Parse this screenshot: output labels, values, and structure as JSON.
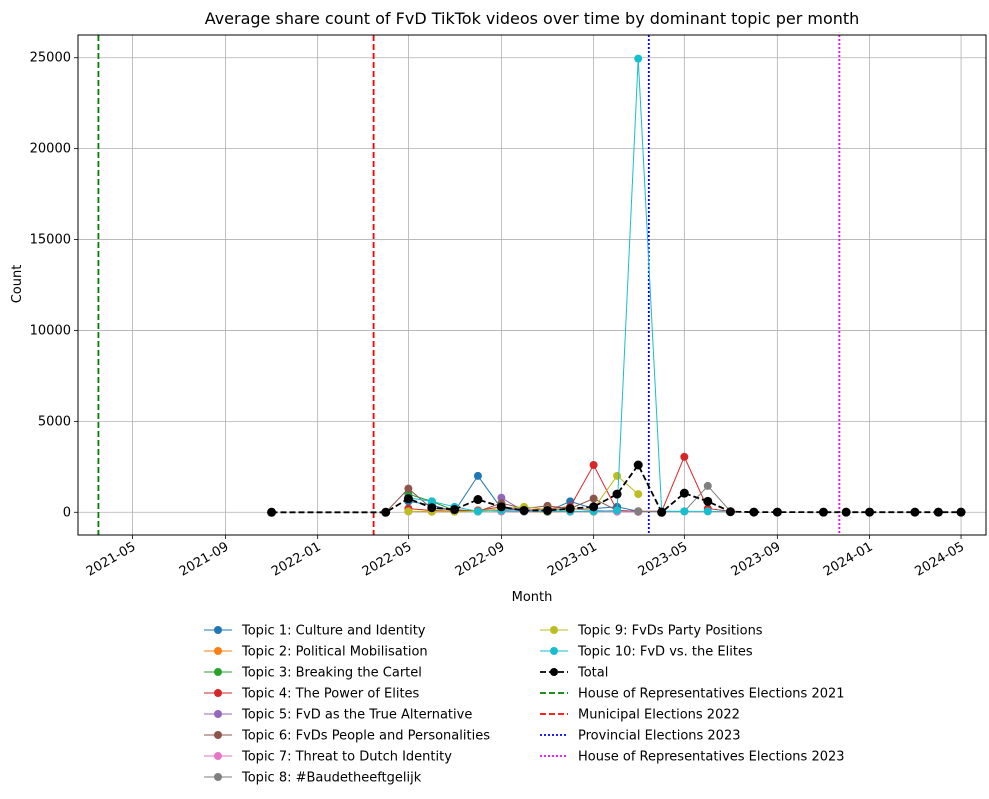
{
  "chart_data": {
    "type": "line",
    "title": "Average share count of FvD TikTok videos over time by dominant topic per month",
    "xlabel": "Month",
    "ylabel": "Count",
    "xlim": [
      "2021-02-18",
      "2024-06-03"
    ],
    "ylim": [
      -1250,
      26250
    ],
    "x_ticks": [
      "2021-05",
      "2021-09",
      "2022-01",
      "2022-05",
      "2022-09",
      "2023-01",
      "2023-05",
      "2023-09",
      "2024-01",
      "2024-05"
    ],
    "y_ticks": [
      0,
      5000,
      10000,
      15000,
      20000,
      25000
    ],
    "grid": true,
    "legend_position": "below plot, two columns",
    "series": [
      {
        "name": "Topic 1: Culture and Identity",
        "color": "#1f77b4",
        "points": [
          [
            "2022-05-01",
            600
          ],
          [
            "2022-06-01",
            400
          ],
          [
            "2022-07-01",
            50
          ],
          [
            "2022-08-01",
            2000
          ],
          [
            "2022-09-01",
            200
          ],
          [
            "2022-10-01",
            100
          ],
          [
            "2022-11-01",
            50
          ],
          [
            "2022-12-01",
            600
          ],
          [
            "2023-01-01",
            200
          ],
          [
            "2023-02-01",
            300
          ],
          [
            "2023-03-01",
            50
          ],
          [
            "2023-04-01",
            50
          ]
        ]
      },
      {
        "name": "Topic 2: Political Mobilisation",
        "color": "#ff7f0e",
        "points": [
          [
            "2022-05-01",
            50
          ],
          [
            "2022-06-01",
            30
          ],
          [
            "2022-07-01",
            40
          ],
          [
            "2022-08-01",
            100
          ],
          [
            "2022-09-01",
            50
          ],
          [
            "2022-10-01",
            30
          ],
          [
            "2022-11-01",
            20
          ],
          [
            "2022-12-01",
            50
          ],
          [
            "2023-01-01",
            30
          ]
        ]
      },
      {
        "name": "Topic 3: Breaking the Cartel",
        "color": "#2ca02c",
        "points": [
          [
            "2022-05-01",
            1000
          ],
          [
            "2022-06-01",
            600
          ],
          [
            "2022-07-01",
            100
          ],
          [
            "2022-08-01",
            50
          ],
          [
            "2022-09-01",
            100
          ],
          [
            "2022-10-01",
            50
          ],
          [
            "2022-11-01",
            30
          ],
          [
            "2022-12-01",
            100
          ]
        ]
      },
      {
        "name": "Topic 4: The Power of Elites",
        "color": "#d62728",
        "points": [
          [
            "2022-05-01",
            200
          ],
          [
            "2022-06-01",
            100
          ],
          [
            "2022-07-01",
            50
          ],
          [
            "2022-08-01",
            100
          ],
          [
            "2022-09-01",
            300
          ],
          [
            "2022-10-01",
            100
          ],
          [
            "2022-11-01",
            200
          ],
          [
            "2022-12-01",
            300
          ],
          [
            "2023-01-01",
            2600
          ],
          [
            "2023-02-01",
            100
          ],
          [
            "2023-03-01",
            50
          ],
          [
            "2023-04-01",
            50
          ],
          [
            "2023-05-01",
            3050
          ],
          [
            "2023-06-01",
            200
          ],
          [
            "2023-07-01",
            50
          ]
        ]
      },
      {
        "name": "Topic 5: FvD as the True Alternative",
        "color": "#9467bd",
        "points": [
          [
            "2022-09-01",
            800
          ],
          [
            "2022-10-01",
            50
          ],
          [
            "2022-11-01",
            100
          ],
          [
            "2022-12-01",
            200
          ],
          [
            "2023-01-01",
            100
          ],
          [
            "2023-02-01",
            50
          ]
        ]
      },
      {
        "name": "Topic 6: FvDs People and Personalities",
        "color": "#8c564b",
        "points": [
          [
            "2022-04-01",
            0
          ],
          [
            "2022-05-01",
            1300
          ],
          [
            "2022-06-01",
            200
          ],
          [
            "2022-07-01",
            150
          ],
          [
            "2022-08-01",
            50
          ],
          [
            "2022-09-01",
            500
          ],
          [
            "2022-10-01",
            200
          ],
          [
            "2022-11-01",
            350
          ],
          [
            "2022-12-01",
            200
          ],
          [
            "2023-01-01",
            750
          ],
          [
            "2023-02-01",
            100
          ],
          [
            "2023-03-01",
            50
          ]
        ]
      },
      {
        "name": "Topic 7: Threat to Dutch Identity",
        "color": "#e377c2",
        "points": [
          [
            "2022-09-01",
            50
          ],
          [
            "2022-10-01",
            30
          ],
          [
            "2022-11-01",
            50
          ],
          [
            "2022-12-01",
            30
          ],
          [
            "2023-01-01",
            50
          ],
          [
            "2023-02-01",
            30
          ],
          [
            "2023-03-01",
            20
          ]
        ]
      },
      {
        "name": "Topic 8: #Baudetheeftgelijk",
        "color": "#7f7f7f",
        "points": [
          [
            "2023-03-01",
            50
          ],
          [
            "2023-04-01",
            50
          ],
          [
            "2023-05-01",
            50
          ],
          [
            "2023-06-01",
            1450
          ],
          [
            "2023-07-01",
            50
          ]
        ]
      },
      {
        "name": "Topic 9: FvDs Party Positions",
        "color": "#bcbd22",
        "points": [
          [
            "2022-05-01",
            50
          ],
          [
            "2022-06-01",
            50
          ],
          [
            "2022-07-01",
            30
          ],
          [
            "2022-08-01",
            50
          ],
          [
            "2022-09-01",
            200
          ],
          [
            "2022-10-01",
            300
          ],
          [
            "2022-11-01",
            150
          ],
          [
            "2022-12-01",
            200
          ],
          [
            "2023-01-01",
            200
          ],
          [
            "2023-02-01",
            2000
          ],
          [
            "2023-03-01",
            1000
          ]
        ]
      },
      {
        "name": "Topic 10: FvD vs. the Elites",
        "color": "#17becf",
        "points": [
          [
            "2022-05-01",
            800
          ],
          [
            "2022-06-01",
            600
          ],
          [
            "2022-07-01",
            300
          ],
          [
            "2022-08-01",
            50
          ],
          [
            "2022-09-01",
            100
          ],
          [
            "2022-10-01",
            50
          ],
          [
            "2022-11-01",
            50
          ],
          [
            "2022-12-01",
            50
          ],
          [
            "2023-01-01",
            50
          ],
          [
            "2023-02-01",
            100
          ],
          [
            "2023-03-01",
            24950
          ],
          [
            "2023-04-01",
            50
          ],
          [
            "2023-05-01",
            50
          ],
          [
            "2023-06-01",
            50
          ],
          [
            "2023-07-01",
            30
          ]
        ]
      },
      {
        "name": "Total",
        "color": "#000000",
        "style": "dashed",
        "points": [
          [
            "2021-11-01",
            0
          ],
          [
            "2022-04-01",
            0
          ],
          [
            "2022-05-01",
            750
          ],
          [
            "2022-06-01",
            250
          ],
          [
            "2022-07-01",
            150
          ],
          [
            "2022-08-01",
            700
          ],
          [
            "2022-09-01",
            300
          ],
          [
            "2022-10-01",
            100
          ],
          [
            "2022-11-01",
            100
          ],
          [
            "2022-12-01",
            200
          ],
          [
            "2023-01-01",
            300
          ],
          [
            "2023-02-01",
            1000
          ],
          [
            "2023-03-01",
            2600
          ],
          [
            "2023-04-01",
            0
          ],
          [
            "2023-05-01",
            1050
          ],
          [
            "2023-06-01",
            600
          ],
          [
            "2023-07-01",
            30
          ],
          [
            "2023-08-01",
            10
          ],
          [
            "2023-09-01",
            10
          ],
          [
            "2023-11-01",
            5
          ],
          [
            "2023-12-01",
            5
          ],
          [
            "2024-01-01",
            5
          ],
          [
            "2024-03-01",
            5
          ],
          [
            "2024-04-01",
            5
          ],
          [
            "2024-05-01",
            5
          ]
        ]
      }
    ],
    "reference_lines": [
      {
        "name": "House of Representatives Elections 2021",
        "date": "2021-03-17",
        "color": "#008000",
        "style": "dashed"
      },
      {
        "name": "Municipal Elections 2022",
        "date": "2022-03-16",
        "color": "#ff0000",
        "style": "dashed"
      },
      {
        "name": "Provincial Elections 2023",
        "date": "2023-03-15",
        "color": "#0000ff",
        "style": "dotted"
      },
      {
        "name": "House of Representatives Elections 2023",
        "date": "2023-11-22",
        "color": "#ff00ff",
        "style": "dotted"
      }
    ]
  }
}
